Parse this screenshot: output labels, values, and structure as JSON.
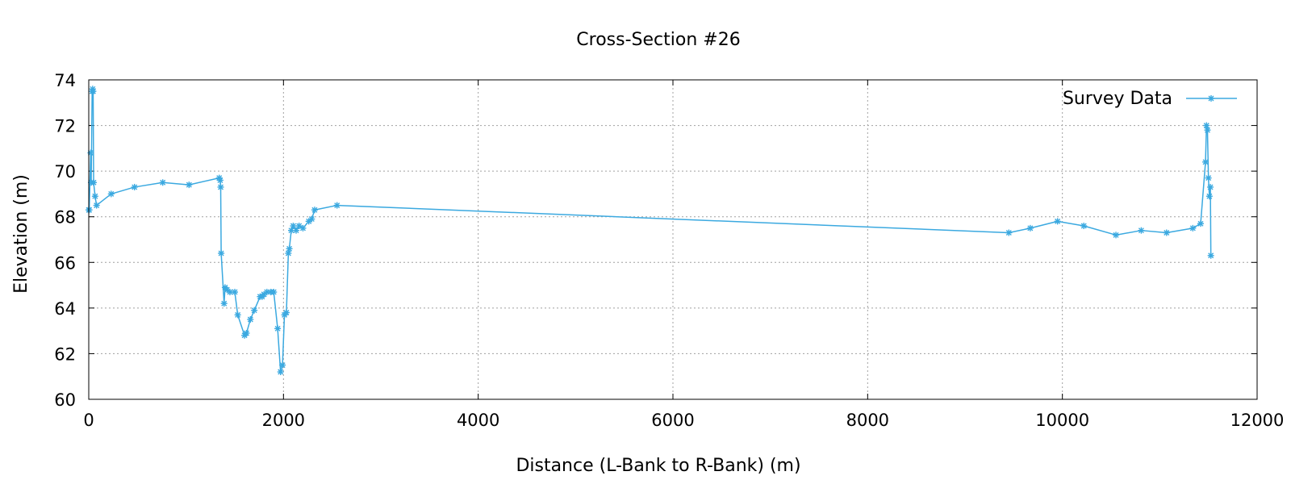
{
  "chart_data": {
    "type": "line",
    "title": "Cross-Section #26",
    "xlabel": "Distance (L-Bank to R-Bank) (m)",
    "ylabel": "Elevation (m)",
    "xlim": [
      0,
      12000
    ],
    "ylim": [
      60,
      74
    ],
    "xticks": [
      0,
      2000,
      4000,
      6000,
      8000,
      10000,
      12000
    ],
    "yticks": [
      60,
      62,
      64,
      66,
      68,
      70,
      72,
      74
    ],
    "grid": true,
    "legend_position": "top-right",
    "series": [
      {
        "name": "Survey Data",
        "color": "#3ba9e0",
        "marker": "asterisk",
        "points": [
          [
            0,
            68.3
          ],
          [
            5,
            68.3
          ],
          [
            20,
            70.8
          ],
          [
            25,
            69.5
          ],
          [
            35,
            73.5
          ],
          [
            40,
            73.6
          ],
          [
            45,
            73.5
          ],
          [
            50,
            69.5
          ],
          [
            65,
            68.9
          ],
          [
            80,
            68.5
          ],
          [
            230,
            69.0
          ],
          [
            470,
            69.3
          ],
          [
            760,
            69.5
          ],
          [
            1030,
            69.4
          ],
          [
            1340,
            69.7
          ],
          [
            1350,
            69.6
          ],
          [
            1355,
            69.3
          ],
          [
            1360,
            66.4
          ],
          [
            1390,
            64.2
          ],
          [
            1400,
            64.9
          ],
          [
            1420,
            64.8
          ],
          [
            1450,
            64.7
          ],
          [
            1500,
            64.7
          ],
          [
            1530,
            63.7
          ],
          [
            1600,
            62.8
          ],
          [
            1620,
            62.9
          ],
          [
            1660,
            63.5
          ],
          [
            1700,
            63.9
          ],
          [
            1760,
            64.5
          ],
          [
            1780,
            64.5
          ],
          [
            1800,
            64.6
          ],
          [
            1830,
            64.7
          ],
          [
            1870,
            64.7
          ],
          [
            1900,
            64.7
          ],
          [
            1940,
            63.1
          ],
          [
            1970,
            61.2
          ],
          [
            1990,
            61.5
          ],
          [
            2010,
            63.7
          ],
          [
            2030,
            63.8
          ],
          [
            2050,
            66.4
          ],
          [
            2060,
            66.6
          ],
          [
            2080,
            67.4
          ],
          [
            2100,
            67.6
          ],
          [
            2130,
            67.4
          ],
          [
            2160,
            67.6
          ],
          [
            2200,
            67.5
          ],
          [
            2260,
            67.8
          ],
          [
            2290,
            67.9
          ],
          [
            2320,
            68.3
          ],
          [
            2550,
            68.5
          ],
          [
            9450,
            67.3
          ],
          [
            9670,
            67.5
          ],
          [
            9950,
            67.8
          ],
          [
            10220,
            67.6
          ],
          [
            10550,
            67.2
          ],
          [
            10810,
            67.4
          ],
          [
            11070,
            67.3
          ],
          [
            11340,
            67.5
          ],
          [
            11420,
            67.7
          ],
          [
            11470,
            70.4
          ],
          [
            11480,
            72.0
          ],
          [
            11490,
            71.8
          ],
          [
            11500,
            69.7
          ],
          [
            11510,
            68.9
          ],
          [
            11520,
            69.3
          ],
          [
            11525,
            66.3
          ]
        ]
      }
    ]
  }
}
